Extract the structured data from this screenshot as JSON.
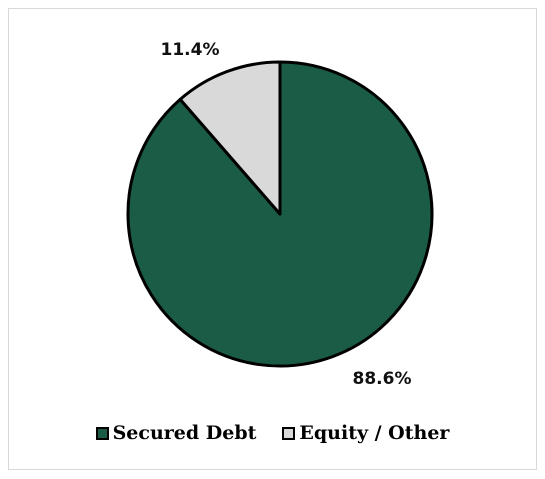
{
  "chart_data": {
    "type": "pie",
    "categories": [
      "Secured Debt",
      "Equity / Other"
    ],
    "values": [
      88.6,
      11.4
    ],
    "data_labels": [
      "88.6%",
      "11.4%"
    ],
    "colors": [
      "#1a5c45",
      "#d9d9d9"
    ],
    "legend_position": "bottom",
    "start_angle": "12 o'clock",
    "direction": "clockwise",
    "title": ""
  },
  "legend": {
    "items": [
      {
        "label": "Secured Debt",
        "color": "#1a5c45"
      },
      {
        "label": "Equity / Other",
        "color": "#d9d9d9"
      }
    ]
  }
}
